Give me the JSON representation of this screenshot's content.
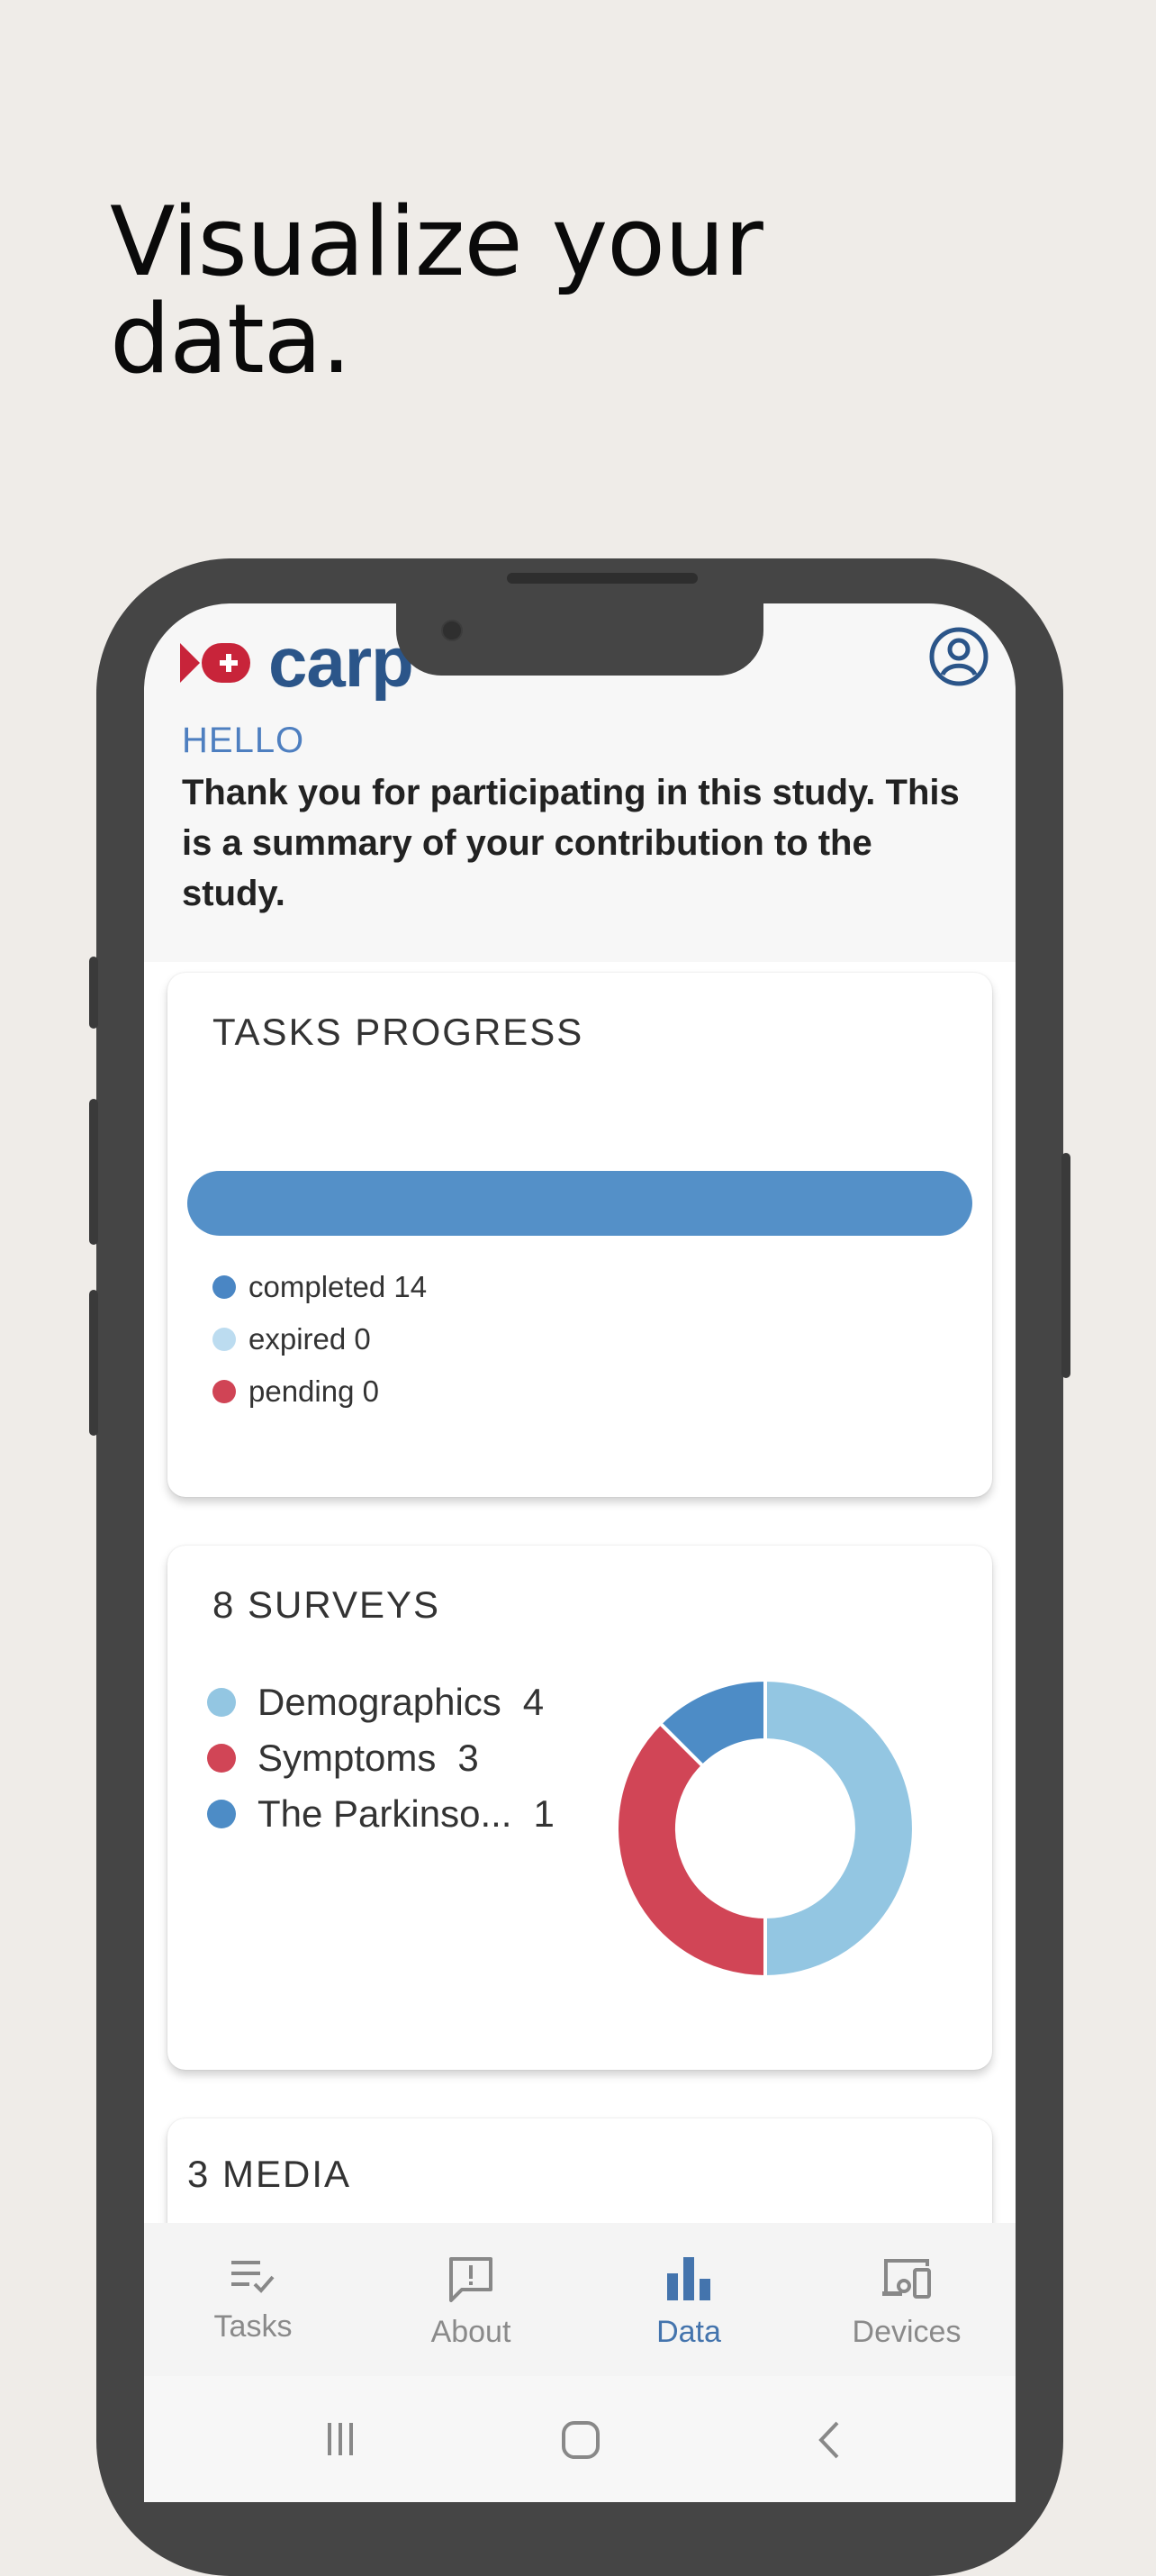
{
  "headline": {
    "line1": "Visualize your",
    "line2": "data."
  },
  "app": {
    "logo_text": "carp",
    "hello": "HELLO",
    "intro": "Thank you for participating in this study. This is a summary of your contribution to the study."
  },
  "tasks_card": {
    "title": "TASKS PROGRESS",
    "progress_fraction_completed": 1.0,
    "legend": [
      {
        "label": "completed 14",
        "color": "#4a86c4"
      },
      {
        "label": "expired 0",
        "color": "#bcdcf0"
      },
      {
        "label": "pending 0",
        "color": "#d04455"
      }
    ]
  },
  "surveys_card": {
    "title": "8 SURVEYS",
    "items": [
      {
        "name": "Demographics",
        "count": "4",
        "color": "#93c6e2"
      },
      {
        "name": "Symptoms",
        "count": "3",
        "color": "#d14556"
      },
      {
        "name": "The Parkinso...",
        "count": "1",
        "color": "#4d8cc6"
      }
    ]
  },
  "chart_data": {
    "type": "pie",
    "categories": [
      "Demographics",
      "Symptoms",
      "The Parkinso..."
    ],
    "values": [
      4,
      3,
      1
    ],
    "colors": [
      "#93c6e2",
      "#d14556",
      "#4d8cc6"
    ],
    "donut": true
  },
  "media_card": {
    "title": "3 MEDIA"
  },
  "nav": {
    "items": [
      {
        "label": "Tasks",
        "icon": "tasks-icon",
        "active": false
      },
      {
        "label": "About",
        "icon": "about-icon",
        "active": false
      },
      {
        "label": "Data",
        "icon": "bar-chart-icon",
        "active": true
      },
      {
        "label": "Devices",
        "icon": "devices-icon",
        "active": false
      }
    ]
  },
  "colors": {
    "brand": "#2b5589",
    "accent": "#4474ad",
    "background": "#efece8"
  }
}
